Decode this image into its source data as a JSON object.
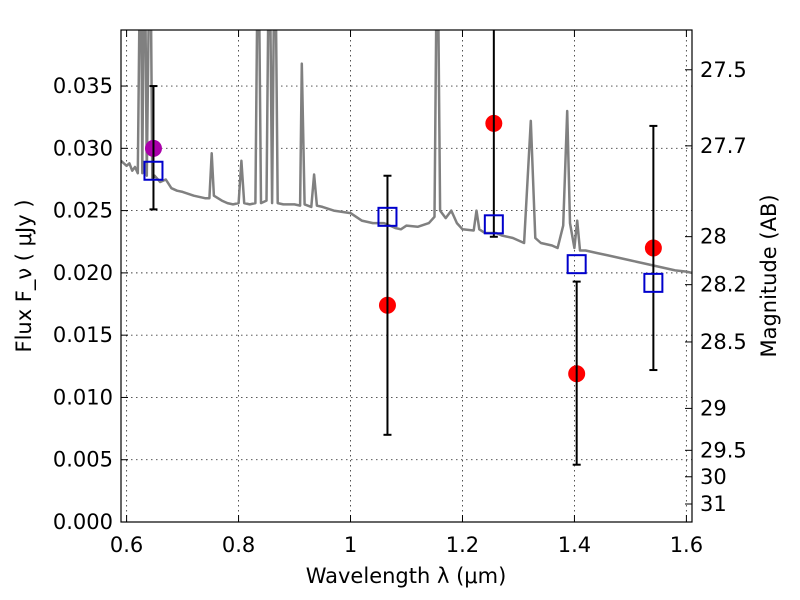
{
  "chart_data": {
    "type": "scatter",
    "xlabel": "Wavelength  λ (μm)",
    "ylabel": "Flux  F_ν  ( μJy )",
    "y2label": "Magnitude (AB)",
    "xlim": [
      0.59,
      1.61
    ],
    "ylim": [
      0.0,
      0.0395
    ],
    "grid": true,
    "x_ticks": [
      0.6,
      0.8,
      1.0,
      1.2,
      1.4,
      1.6
    ],
    "x_tick_labels": [
      "0.6",
      "0.8",
      "1",
      "1.2",
      "1.4",
      "1.6"
    ],
    "y_ticks": [
      0.0,
      0.005,
      0.01,
      0.015,
      0.02,
      0.025,
      0.03,
      0.035
    ],
    "y_tick_labels": [
      "0.000",
      "0.005",
      "0.010",
      "0.015",
      "0.020",
      "0.025",
      "0.030",
      "0.035"
    ],
    "y2_ticks": [
      27.5,
      27.7,
      28.0,
      28.2,
      28.5,
      29.0,
      29.5,
      30.0,
      31.0
    ],
    "y2_tick_labels": [
      "27.5",
      "27.7",
      "28",
      "28.2",
      "28.5",
      "29",
      "29.5",
      "30",
      "31"
    ],
    "series": [
      {
        "kind": "line",
        "color": "#808080",
        "points": [
          [
            0.59,
            0.029
          ],
          [
            0.6,
            0.0286
          ],
          [
            0.605,
            0.0288
          ],
          [
            0.61,
            0.0282
          ],
          [
            0.615,
            0.0285
          ],
          [
            0.62,
            0.028
          ],
          [
            0.625,
            0.05
          ],
          [
            0.628,
            0.028
          ],
          [
            0.632,
            0.05
          ],
          [
            0.636,
            0.0278
          ],
          [
            0.642,
            0.05
          ],
          [
            0.646,
            0.0276
          ],
          [
            0.65,
            0.0278
          ],
          [
            0.66,
            0.0273
          ],
          [
            0.67,
            0.0275
          ],
          [
            0.68,
            0.0268
          ],
          [
            0.69,
            0.0266
          ],
          [
            0.7,
            0.0265
          ],
          [
            0.72,
            0.0262
          ],
          [
            0.74,
            0.026
          ],
          [
            0.748,
            0.026
          ],
          [
            0.752,
            0.0296
          ],
          [
            0.756,
            0.0262
          ],
          [
            0.77,
            0.0258
          ],
          [
            0.78,
            0.0256
          ],
          [
            0.79,
            0.0255
          ],
          [
            0.8,
            0.0256
          ],
          [
            0.805,
            0.029
          ],
          [
            0.81,
            0.0256
          ],
          [
            0.82,
            0.0255
          ],
          [
            0.83,
            0.0256
          ],
          [
            0.835,
            0.05
          ],
          [
            0.84,
            0.0256
          ],
          [
            0.85,
            0.0258
          ],
          [
            0.855,
            0.05
          ],
          [
            0.86,
            0.0256
          ],
          [
            0.865,
            0.05
          ],
          [
            0.87,
            0.0256
          ],
          [
            0.88,
            0.0255
          ],
          [
            0.9,
            0.0255
          ],
          [
            0.91,
            0.0254
          ],
          [
            0.913,
            0.0368
          ],
          [
            0.918,
            0.0255
          ],
          [
            0.93,
            0.0253
          ],
          [
            0.935,
            0.0279
          ],
          [
            0.94,
            0.0254
          ],
          [
            0.95,
            0.0253
          ],
          [
            0.97,
            0.025
          ],
          [
            1.0,
            0.0248
          ],
          [
            1.02,
            0.0242
          ],
          [
            1.04,
            0.024
          ],
          [
            1.06,
            0.024
          ],
          [
            1.08,
            0.0236
          ],
          [
            1.09,
            0.0235
          ],
          [
            1.1,
            0.0238
          ],
          [
            1.12,
            0.0237
          ],
          [
            1.14,
            0.024
          ],
          [
            1.15,
            0.0245
          ],
          [
            1.155,
            0.05
          ],
          [
            1.16,
            0.025
          ],
          [
            1.17,
            0.0244
          ],
          [
            1.18,
            0.025
          ],
          [
            1.19,
            0.024
          ],
          [
            1.2,
            0.0235
          ],
          [
            1.22,
            0.0234
          ],
          [
            1.225,
            0.025
          ],
          [
            1.23,
            0.0235
          ],
          [
            1.24,
            0.0232
          ],
          [
            1.26,
            0.0232
          ],
          [
            1.27,
            0.023
          ],
          [
            1.29,
            0.0228
          ],
          [
            1.3,
            0.0226
          ],
          [
            1.31,
            0.0224
          ],
          [
            1.322,
            0.0322
          ],
          [
            1.33,
            0.0228
          ],
          [
            1.34,
            0.0224
          ],
          [
            1.36,
            0.0222
          ],
          [
            1.37,
            0.022
          ],
          [
            1.38,
            0.0238
          ],
          [
            1.387,
            0.033
          ],
          [
            1.392,
            0.024
          ],
          [
            1.4,
            0.022
          ],
          [
            1.405,
            0.0242
          ],
          [
            1.41,
            0.0218
          ],
          [
            1.42,
            0.0218
          ],
          [
            1.44,
            0.0216
          ],
          [
            1.46,
            0.0214
          ],
          [
            1.48,
            0.0212
          ],
          [
            1.5,
            0.021
          ],
          [
            1.52,
            0.0208
          ],
          [
            1.54,
            0.0206
          ],
          [
            1.56,
            0.0204
          ],
          [
            1.58,
            0.0202
          ],
          [
            1.6,
            0.0201
          ],
          [
            1.61,
            0.02
          ]
        ]
      },
      {
        "kind": "circles",
        "points": [
          {
            "x": 0.648,
            "y": 0.03,
            "color": "#aa00aa"
          },
          {
            "x": 1.066,
            "y": 0.0174,
            "color": "#ff0000"
          },
          {
            "x": 1.256,
            "y": 0.032,
            "color": "#ff0000"
          },
          {
            "x": 1.404,
            "y": 0.0119,
            "color": "#ff0000"
          },
          {
            "x": 1.541,
            "y": 0.022,
            "color": "#ff0000"
          }
        ]
      },
      {
        "kind": "errorbars",
        "color": "#000000",
        "bars": [
          {
            "x": 0.648,
            "low": 0.0251,
            "high": 0.035
          },
          {
            "x": 1.066,
            "low": 0.007,
            "high": 0.0278
          },
          {
            "x": 1.256,
            "low": 0.0229,
            "high": 0.04
          },
          {
            "x": 1.404,
            "low": 0.0046,
            "high": 0.0193
          },
          {
            "x": 1.541,
            "low": 0.0122,
            "high": 0.0318
          }
        ]
      },
      {
        "kind": "squares",
        "color": "#0000cc",
        "points": [
          {
            "x": 0.648,
            "y": 0.0282
          },
          {
            "x": 1.066,
            "y": 0.0245
          },
          {
            "x": 1.256,
            "y": 0.0239
          },
          {
            "x": 1.404,
            "y": 0.0207
          },
          {
            "x": 1.541,
            "y": 0.0192
          }
        ]
      }
    ]
  }
}
